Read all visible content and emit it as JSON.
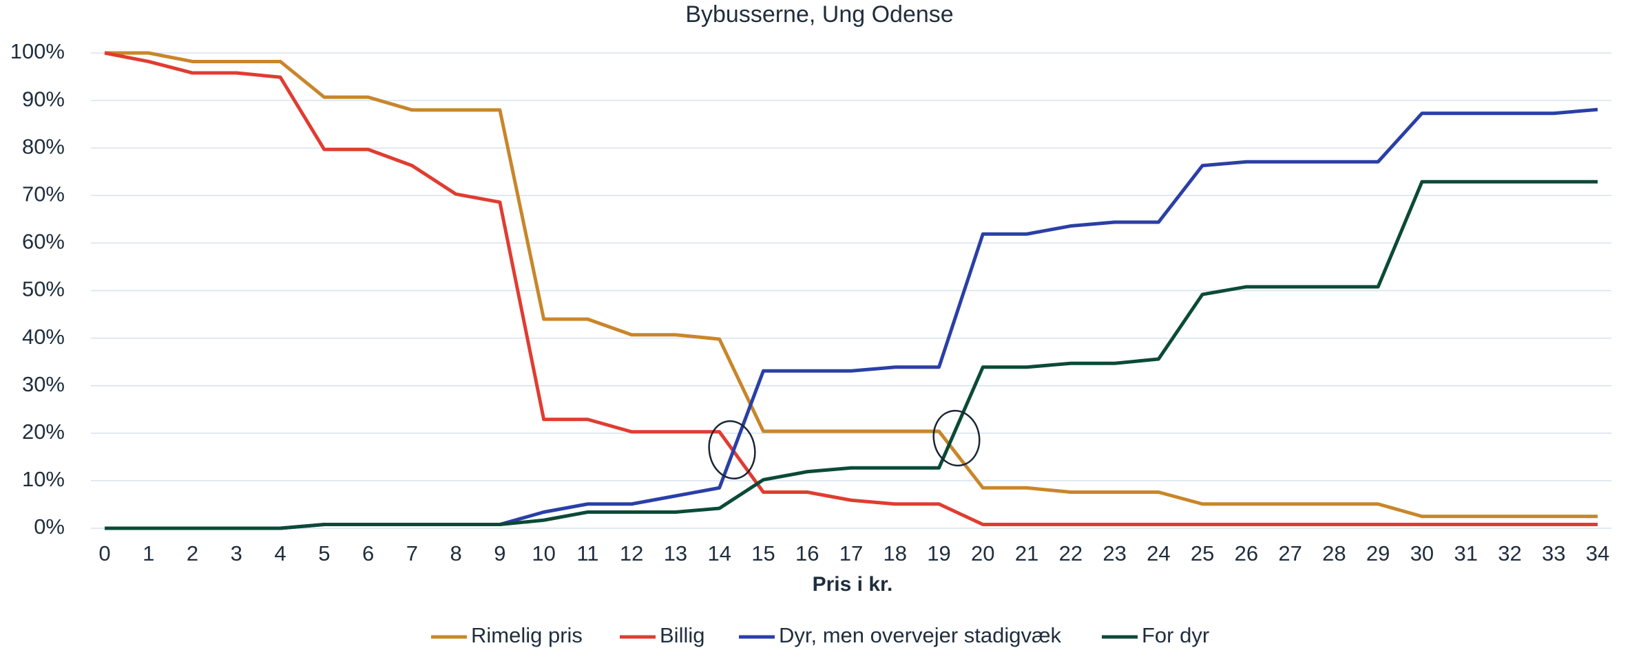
{
  "chart_data": {
    "type": "line",
    "title": "Bybusserne, Ung Odense",
    "xlabel": "Pris i kr.",
    "x": [
      0,
      1,
      2,
      3,
      4,
      5,
      6,
      7,
      8,
      9,
      10,
      11,
      12,
      13,
      14,
      15,
      16,
      17,
      18,
      19,
      20,
      21,
      22,
      23,
      24,
      25,
      26,
      27,
      28,
      29,
      30,
      31,
      32,
      33,
      34
    ],
    "xlim": [
      0,
      34
    ],
    "xticks": [
      0,
      1,
      2,
      3,
      4,
      5,
      6,
      7,
      8,
      9,
      10,
      11,
      12,
      13,
      14,
      15,
      16,
      17,
      18,
      19,
      20,
      21,
      22,
      23,
      24,
      25,
      26,
      27,
      28,
      29,
      30,
      31,
      32,
      33,
      34
    ],
    "ylim": [
      0,
      100
    ],
    "yticks": [
      {
        "value": 0,
        "label": "0%"
      },
      {
        "value": 10,
        "label": "10%"
      },
      {
        "value": 20,
        "label": "20%"
      },
      {
        "value": 30,
        "label": "30%"
      },
      {
        "value": 40,
        "label": "40%"
      },
      {
        "value": 50,
        "label": "50%"
      },
      {
        "value": 60,
        "label": "60%"
      },
      {
        "value": 70,
        "label": "70%"
      },
      {
        "value": 80,
        "label": "80%"
      },
      {
        "value": 90,
        "label": "90%"
      },
      {
        "value": 100,
        "label": "100%"
      }
    ],
    "grid": true,
    "legend": "bottom",
    "series": [
      {
        "name": "Rimelig pris",
        "color": "#c8862a",
        "values": [
          100,
          100,
          98.2,
          98.2,
          98.2,
          90.7,
          90.7,
          88,
          88,
          88,
          44,
          44,
          40.7,
          40.7,
          39.8,
          20.4,
          20.4,
          20.4,
          20.4,
          20.4,
          8.5,
          8.5,
          7.6,
          7.6,
          7.6,
          5.1,
          5.1,
          5.1,
          5.1,
          5.1,
          2.5,
          2.5,
          2.5,
          2.5,
          2.5
        ]
      },
      {
        "name": "Billig",
        "color": "#e03c31",
        "values": [
          100,
          98.2,
          95.8,
          95.8,
          94.9,
          79.7,
          79.7,
          76.3,
          70.3,
          68.6,
          22.9,
          22.9,
          20.3,
          20.3,
          20.3,
          7.6,
          7.6,
          5.9,
          5.1,
          5.1,
          0.8,
          0.8,
          0.8,
          0.8,
          0.8,
          0.8,
          0.8,
          0.8,
          0.8,
          0.8,
          0.8,
          0.8,
          0.8,
          0.8,
          0.8
        ]
      },
      {
        "name": "Dyr, men overvejer stadigvæk",
        "color": "#2a3fa6",
        "values": [
          0,
          0,
          0,
          0,
          0,
          0.8,
          0.8,
          0.8,
          0.8,
          0.8,
          3.4,
          5.1,
          5.1,
          6.8,
          8.5,
          33.1,
          33.1,
          33.1,
          33.9,
          33.9,
          61.9,
          61.9,
          63.6,
          64.4,
          64.4,
          76.3,
          77.1,
          77.1,
          77.1,
          77.1,
          87.3,
          87.3,
          87.3,
          87.3,
          88.1
        ]
      },
      {
        "name": "For dyr",
        "color": "#0b4a37",
        "values": [
          0,
          0,
          0,
          0,
          0,
          0.8,
          0.8,
          0.8,
          0.8,
          0.8,
          1.7,
          3.4,
          3.4,
          3.4,
          4.2,
          10.2,
          11.9,
          12.7,
          12.7,
          12.7,
          33.9,
          33.9,
          34.7,
          34.7,
          35.6,
          49.2,
          50.8,
          50.8,
          50.8,
          50.8,
          72.9,
          72.9,
          72.9,
          72.9,
          72.9
        ]
      }
    ]
  }
}
